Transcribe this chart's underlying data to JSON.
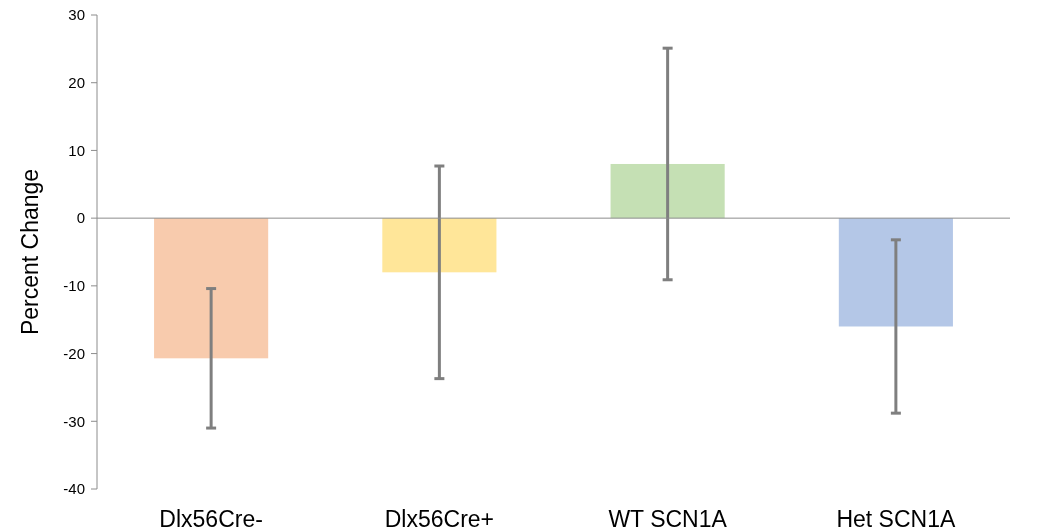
{
  "chart_data": {
    "type": "bar",
    "ylabel": "Percent Change",
    "categories": [
      "Dlx56Cre-",
      "Dlx56Cre+",
      "WT SCN1A",
      "Het SCN1A"
    ],
    "values": [
      -20.7,
      -8.0,
      8.0,
      -16.0
    ],
    "colors": [
      "#f8cbad",
      "#ffe699",
      "#c5e0b4",
      "#b4c7e7"
    ],
    "errors": [
      10.3,
      15.7,
      17.1,
      12.8
    ],
    "ylim": [
      -40,
      30
    ],
    "yticks": [
      -40,
      -30,
      -20,
      -10,
      0,
      10,
      20,
      30
    ]
  }
}
